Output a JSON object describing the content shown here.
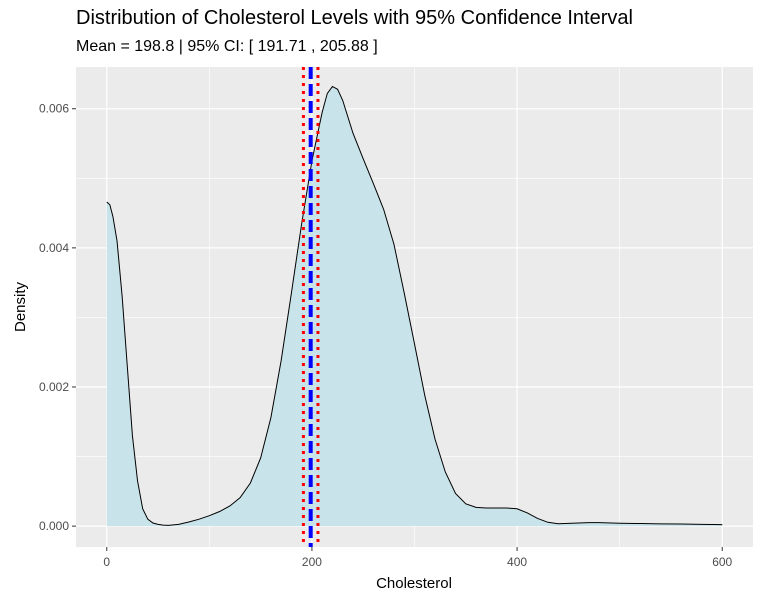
{
  "chart_data": {
    "type": "area",
    "title": "Distribution of Cholesterol Levels with 95% Confidence Interval",
    "subtitle": "Mean = 198.8 | 95% CI: [ 191.71 , 205.88 ]",
    "xlabel": "Cholesterol",
    "ylabel": "Density",
    "xlim": [
      -30,
      630
    ],
    "ylim": [
      -0.0003,
      0.0066
    ],
    "x_ticks": [
      0,
      200,
      400,
      600
    ],
    "x_tick_labels": [
      "0",
      "200",
      "400",
      "600"
    ],
    "y_ticks": [
      0.0,
      0.002,
      0.004,
      0.006
    ],
    "y_tick_labels": [
      "0.000",
      "0.002",
      "0.004",
      "0.006"
    ],
    "grid": true,
    "fill_color": "#c8e3e9",
    "line_color": "#000000",
    "panel_background": "#ebebeb",
    "mean": 198.8,
    "ci_lower": 191.71,
    "ci_upper": 205.88,
    "mean_line_color": "#0000ff",
    "ci_line_color": "#ff0000",
    "series": [
      {
        "x": [
          0,
          3,
          6,
          10,
          15,
          20,
          25,
          30,
          35,
          40,
          45,
          50,
          55,
          60,
          70,
          80,
          90,
          100,
          110,
          120,
          130,
          140,
          150,
          160,
          170,
          180,
          190,
          200,
          210,
          215,
          220,
          225,
          230,
          240,
          250,
          260,
          270,
          280,
          290,
          300,
          310,
          320,
          330,
          340,
          350,
          360,
          370,
          380,
          390,
          400,
          410,
          420,
          430,
          440,
          450,
          460,
          470,
          480,
          500,
          520,
          540,
          560,
          580,
          600
        ],
        "y": [
          0.00466,
          0.00462,
          0.00445,
          0.0041,
          0.0033,
          0.0023,
          0.0013,
          0.00065,
          0.00025,
          0.0001,
          4.5e-05,
          2.5e-05,
          1.5e-05,
          1e-05,
          2.5e-05,
          6e-05,
          0.0001,
          0.00015,
          0.00021,
          0.00029,
          0.00041,
          0.00062,
          0.00098,
          0.00156,
          0.00238,
          0.00335,
          0.00435,
          0.00525,
          0.00595,
          0.00622,
          0.00632,
          0.00628,
          0.00612,
          0.00565,
          0.00528,
          0.00492,
          0.00455,
          0.00405,
          0.00335,
          0.00262,
          0.00188,
          0.00125,
          0.00078,
          0.00047,
          0.00032,
          0.00027,
          0.00026,
          0.00026,
          0.00026,
          0.00025,
          0.00019,
          0.00011,
          5.5e-05,
          3.5e-05,
          4e-05,
          4.5e-05,
          5e-05,
          5e-05,
          4.2e-05,
          3.7e-05,
          3.3e-05,
          3e-05,
          2.6e-05,
          2.2e-05
        ]
      }
    ]
  }
}
